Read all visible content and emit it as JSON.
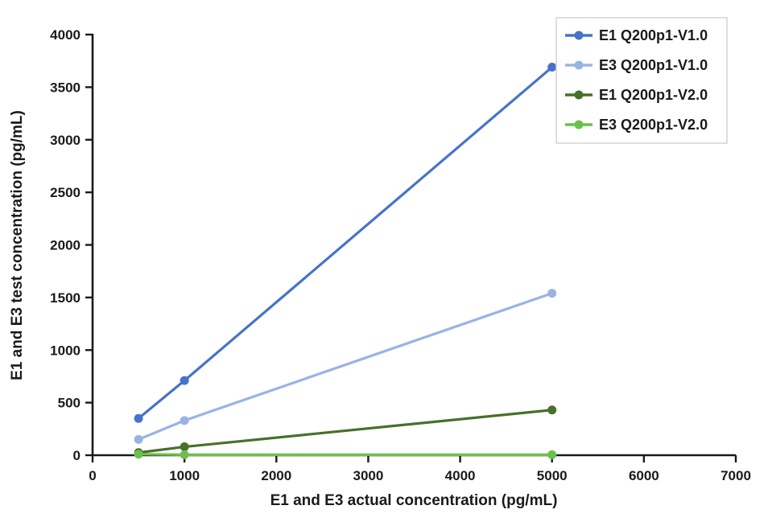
{
  "chart_data": {
    "type": "line",
    "title": "",
    "xlabel": "E1 and E3 actual concentration (pg/mL)",
    "ylabel": "E1 and E3 test concentration (pg/mL)",
    "xlim": [
      0,
      7000
    ],
    "ylim": [
      0,
      4000
    ],
    "xticks": [
      0,
      1000,
      2000,
      3000,
      4000,
      5000,
      6000,
      7000
    ],
    "yticks": [
      0,
      500,
      1000,
      1500,
      2000,
      2500,
      3000,
      3500,
      4000
    ],
    "grid": false,
    "legend_position": "top-right",
    "x": [
      500,
      1000,
      5000
    ],
    "series": [
      {
        "name": "E1 Q200p1-V1.0",
        "color": "#4673C8",
        "values": [
          350,
          710,
          3690
        ]
      },
      {
        "name": "E3 Q200p1-V1.0",
        "color": "#9AB3E6",
        "values": [
          150,
          330,
          1540
        ]
      },
      {
        "name": "E1 Q200p1-V2.0",
        "color": "#47702A",
        "values": [
          25,
          80,
          430
        ]
      },
      {
        "name": "E3 Q200p1-V2.0",
        "color": "#6CC04A",
        "values": [
          10,
          5,
          5
        ]
      }
    ],
    "axis_color": "#1a1a1a",
    "background": "#ffffff",
    "legend_border_color": "#d4d4d4",
    "legend_background": "#ffffff"
  }
}
